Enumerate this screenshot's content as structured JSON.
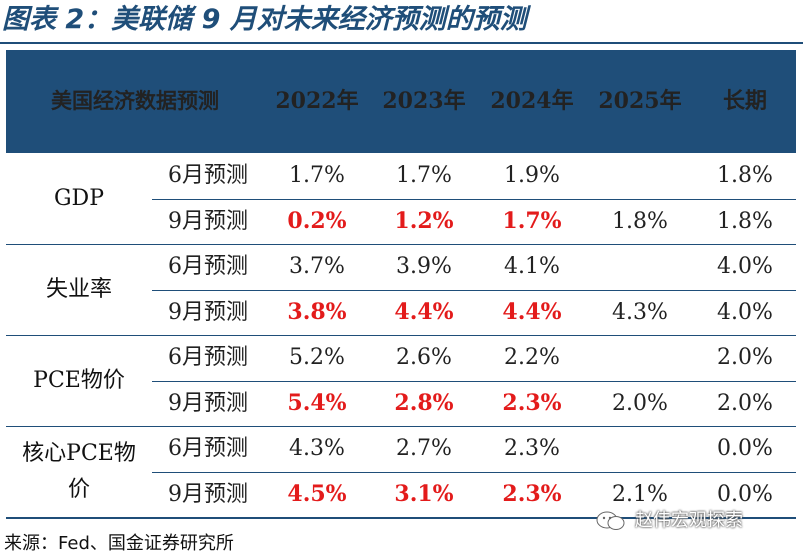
{
  "title": "图表 2：美联储 9 月对未来经济预测的预测",
  "header": {
    "category": "美国经济数据预测",
    "years": [
      "2022年",
      "2023年",
      "2024年",
      "2025年",
      "长期"
    ]
  },
  "groups": [
    {
      "name": "GDP",
      "rows": [
        {
          "label": "6月预测",
          "values": [
            "1.7%",
            "1.7%",
            "1.9%",
            "",
            "1.8%"
          ],
          "highlight": [
            false,
            false,
            false,
            false,
            false
          ]
        },
        {
          "label": "9月预测",
          "values": [
            "0.2%",
            "1.2%",
            "1.7%",
            "1.8%",
            "1.8%"
          ],
          "highlight": [
            true,
            true,
            true,
            false,
            false
          ]
        }
      ]
    },
    {
      "name": "失业率",
      "rows": [
        {
          "label": "6月预测",
          "values": [
            "3.7%",
            "3.9%",
            "4.1%",
            "",
            "4.0%"
          ],
          "highlight": [
            false,
            false,
            false,
            false,
            false
          ]
        },
        {
          "label": "9月预测",
          "values": [
            "3.8%",
            "4.4%",
            "4.4%",
            "4.3%",
            "4.0%"
          ],
          "highlight": [
            true,
            true,
            true,
            false,
            false
          ]
        }
      ]
    },
    {
      "name": "PCE物价",
      "rows": [
        {
          "label": "6月预测",
          "values": [
            "5.2%",
            "2.6%",
            "2.2%",
            "",
            "2.0%"
          ],
          "highlight": [
            false,
            false,
            false,
            false,
            false
          ]
        },
        {
          "label": "9月预测",
          "values": [
            "5.4%",
            "2.8%",
            "2.3%",
            "2.0%",
            "2.0%"
          ],
          "highlight": [
            true,
            true,
            true,
            false,
            false
          ]
        }
      ]
    },
    {
      "name_lines": [
        "核心PCE物",
        "价"
      ],
      "rows": [
        {
          "label": "6月预测",
          "values": [
            "4.3%",
            "2.7%",
            "2.3%",
            "",
            "0.0%"
          ],
          "highlight": [
            false,
            false,
            false,
            false,
            false
          ]
        },
        {
          "label": "9月预测",
          "values": [
            "4.5%",
            "3.1%",
            "2.3%",
            "2.1%",
            "0.0%"
          ],
          "highlight": [
            true,
            true,
            true,
            false,
            false
          ]
        }
      ]
    }
  ],
  "source": "来源：Fed、国金证券研究所",
  "watermark": "赵伟宏观探索",
  "colors": {
    "header_bg": "#1f4e79",
    "highlight": "#e31b1b"
  }
}
